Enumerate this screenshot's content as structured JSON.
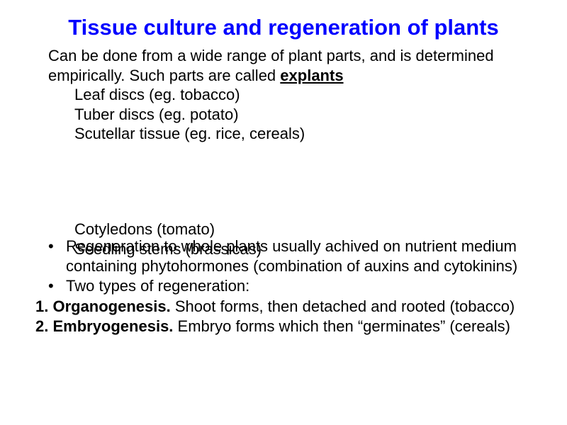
{
  "title": "Tissue culture and regeneration of plants",
  "intro": {
    "text_before": "Can be done from a wide range of plant parts, and is determined empirically.   Such parts are called ",
    "explants_word": "explants"
  },
  "explant_items": [
    "Leaf discs (eg. tobacco)",
    "Tuber discs (eg. potato)",
    "Scutellar tissue (eg. rice, cereals)"
  ],
  "overlay": {
    "line1": "Cotyledons (tomato)",
    "line2": "Seedling stems (brassicas)"
  },
  "bullets": [
    "Regeneration to whole plants usually achived on nutrient medium containing phytohormones (combination of auxins and cytokinins)",
    "Two types of regeneration:"
  ],
  "numbered": [
    {
      "label": "1. Organogenesis. ",
      "rest": "Shoot forms, then detached and rooted (tobacco)"
    },
    {
      "label": "2. Embryogenesis. ",
      "rest": "Embryo forms which then “germinates” (cereals)"
    }
  ],
  "colors": {
    "title": "#0000ff",
    "body": "#000000",
    "background": "#ffffff"
  },
  "fontsizes": {
    "title": 31,
    "body": 22
  }
}
